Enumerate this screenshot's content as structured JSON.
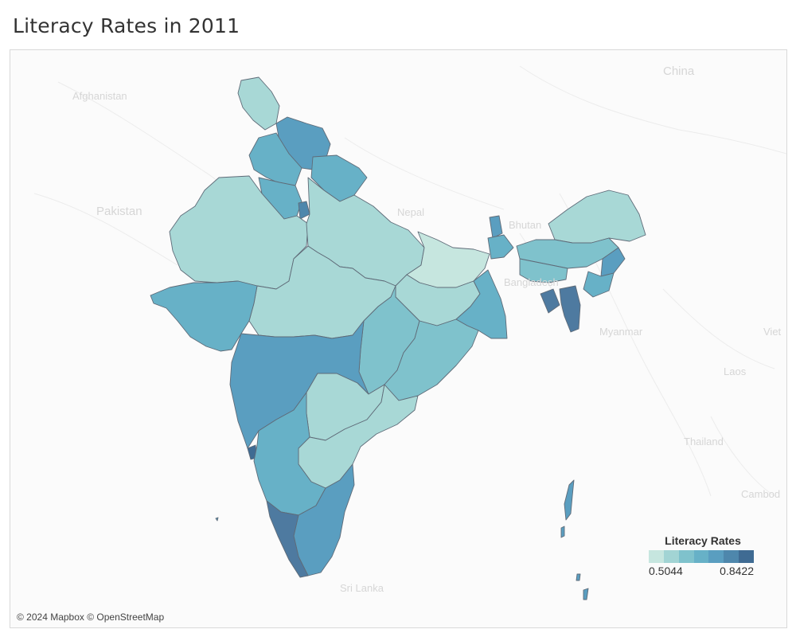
{
  "title": "Literacy Rates in 2011",
  "basemap_labels": {
    "china": "China",
    "afghanistan": "Afghanistan",
    "pakistan": "Pakistan",
    "nepal": "Nepal",
    "bhutan": "Bhutan",
    "bangladesh": "Bangladesh",
    "myanmar": "Myanmar",
    "laos": "Laos",
    "thailand": "Thailand",
    "viet": "Viet",
    "cambodia": "Cambod",
    "sri_lanka": "Sri Lanka"
  },
  "attribution": "© 2024 Mapbox © OpenStreetMap",
  "legend": {
    "title": "Literacy Rates",
    "min_label": "0.5044",
    "max_label": "0.8422",
    "colors": [
      "#c6e6df",
      "#a2d4d4",
      "#7fc2cc",
      "#67b1c7",
      "#5a9ec0",
      "#4e87ac",
      "#3f6b93"
    ]
  }
}
